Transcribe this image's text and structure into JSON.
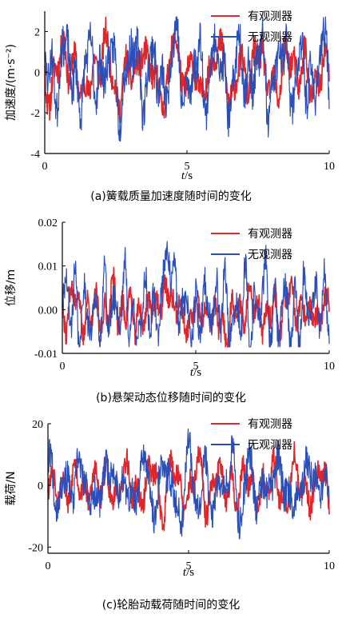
{
  "chart_data": [
    {
      "type": "line",
      "caption": "(a)簧载质量加速度随时间的变化",
      "ylabel": "加速度/(m·s⁻²)",
      "xlabel_italic": "t",
      "xlabel_unit": "/s",
      "xlim": [
        0,
        10
      ],
      "ylim": [
        -4,
        3
      ],
      "xticks": [
        0,
        5,
        10
      ],
      "yticks": [
        -4,
        -2,
        0,
        2
      ],
      "legend_position": "top-right",
      "series": [
        {
          "name": "有观测器",
          "color": "#e0262b",
          "amplitude": 1.6,
          "seed": 11,
          "values": "dense oscillation, approx range -2.8 to 2.4 m/s^2"
        },
        {
          "name": "无观测器",
          "color": "#2b4fb8",
          "amplitude": 2.2,
          "seed": 23,
          "values": "dense oscillation, approx range -3.1 to 2.9 m/s^2"
        }
      ]
    },
    {
      "type": "line",
      "caption": "(b)悬架动态位移随时间的变化",
      "ylabel": "位移/m",
      "xlabel_italic": "t",
      "xlabel_unit": "/s",
      "xlim": [
        0,
        10
      ],
      "ylim": [
        -0.01,
        0.02
      ],
      "xticks": [
        0,
        5,
        10
      ],
      "yticks": [
        -0.01,
        0.0,
        0.01,
        0.02
      ],
      "ytick_labels": [
        "-0.01",
        "0.00",
        "0.01",
        "0.02"
      ],
      "legend_position": "top-right",
      "series": [
        {
          "name": "有观测器",
          "color": "#e0262b",
          "amplitude": 0.006,
          "seed": 37,
          "values": "approx range -0.008 to 0.010 m"
        },
        {
          "name": "无观测器",
          "color": "#2b4fb8",
          "amplitude": 0.008,
          "seed": 41,
          "values": "approx range -0.008 to 0.016 m, peak near t=4 s"
        }
      ]
    },
    {
      "type": "line",
      "caption": "(c)轮胎动载荷随时间的变化",
      "ylabel": "载荷/N",
      "xlabel_italic": "t",
      "xlabel_unit": "/s",
      "xlim": [
        0,
        10
      ],
      "ylim": [
        -22,
        20
      ],
      "xticks": [
        0,
        5,
        10
      ],
      "yticks": [
        -20,
        0,
        20
      ],
      "legend_position": "top-right",
      "series": [
        {
          "name": "有观测器",
          "color": "#e0262b",
          "amplitude": 9,
          "seed": 53,
          "values": "approx range -16 to 15 N"
        },
        {
          "name": "无观测器",
          "color": "#2b4fb8",
          "amplitude": 12,
          "seed": 67,
          "values": "approx range -18 to 18 N"
        }
      ]
    }
  ]
}
